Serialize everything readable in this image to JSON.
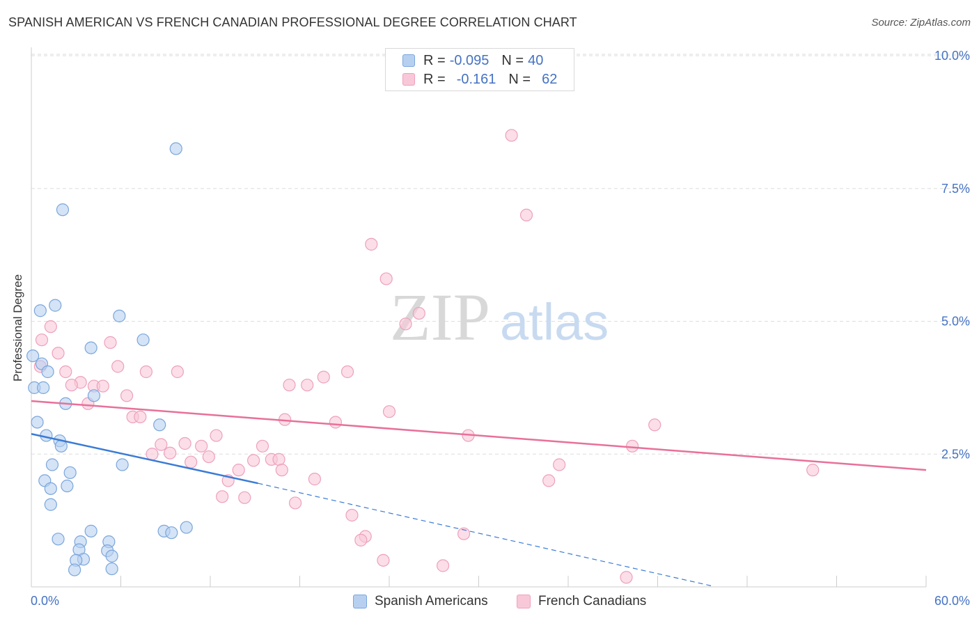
{
  "header": {
    "title": "SPANISH AMERICAN VS FRENCH CANADIAN PROFESSIONAL DEGREE CORRELATION CHART",
    "source": "Source: ZipAtlas.com"
  },
  "watermark": {
    "part1": "ZIP",
    "part2": "atlas"
  },
  "legend": {
    "series1": {
      "r_label": "R =",
      "r_value": "-0.095",
      "n_label": "N =",
      "n_value": "40"
    },
    "series2": {
      "r_label": "R =",
      "r_value": "-0.161",
      "n_label": "N =",
      "n_value": "62"
    }
  },
  "colors": {
    "blue_fill": "#b8d0f0",
    "blue_stroke": "#7aa6dc",
    "blue_line": "#3a7bd5",
    "pink_fill": "#f8c8d8",
    "pink_stroke": "#eea0bc",
    "pink_line": "#e8709a",
    "tick_text": "#4472c4",
    "grid": "#dddddd"
  },
  "chart_data": {
    "type": "scatter",
    "title": "SPANISH AMERICAN VS FRENCH CANADIAN PROFESSIONAL DEGREE CORRELATION CHART",
    "xlabel": "",
    "ylabel": "Professional Degree",
    "xlim": [
      0,
      60
    ],
    "ylim": [
      0,
      10
    ],
    "x_tick_labels": [
      "0.0%",
      "60.0%"
    ],
    "y_ticks": [
      {
        "value": 2.5,
        "label": "2.5%"
      },
      {
        "value": 5.0,
        "label": "5.0%"
      },
      {
        "value": 7.5,
        "label": "7.5%"
      },
      {
        "value": 10.0,
        "label": "10.0%"
      }
    ],
    "series": [
      {
        "name": "Spanish Americans",
        "color": "blue",
        "r": -0.095,
        "n": 40,
        "trend": {
          "x0": 0,
          "y0": 2.88,
          "x1": 15.2,
          "y1": 1.95,
          "dash_to_x": 45.6,
          "dash_to_y": 0.02
        },
        "points": [
          [
            9.7,
            8.25
          ],
          [
            2.1,
            7.1
          ],
          [
            0.6,
            5.2
          ],
          [
            1.6,
            5.3
          ],
          [
            5.9,
            5.1
          ],
          [
            7.5,
            4.65
          ],
          [
            4.0,
            4.5
          ],
          [
            0.1,
            4.35
          ],
          [
            0.7,
            4.2
          ],
          [
            1.1,
            4.05
          ],
          [
            0.2,
            3.75
          ],
          [
            0.8,
            3.75
          ],
          [
            4.2,
            3.6
          ],
          [
            2.3,
            3.45
          ],
          [
            0.4,
            3.1
          ],
          [
            8.6,
            3.05
          ],
          [
            1.0,
            2.85
          ],
          [
            1.9,
            2.75
          ],
          [
            2.0,
            2.65
          ],
          [
            6.1,
            2.3
          ],
          [
            1.4,
            2.3
          ],
          [
            2.6,
            2.15
          ],
          [
            0.9,
            2.0
          ],
          [
            2.4,
            1.9
          ],
          [
            1.3,
            1.85
          ],
          [
            1.3,
            1.55
          ],
          [
            4.0,
            1.05
          ],
          [
            10.4,
            1.12
          ],
          [
            8.9,
            1.05
          ],
          [
            9.4,
            1.02
          ],
          [
            1.8,
            0.9
          ],
          [
            3.3,
            0.85
          ],
          [
            5.2,
            0.85
          ],
          [
            3.2,
            0.7
          ],
          [
            5.1,
            0.68
          ],
          [
            3.5,
            0.52
          ],
          [
            3.0,
            0.5
          ],
          [
            5.4,
            0.58
          ],
          [
            2.9,
            0.32
          ],
          [
            5.4,
            0.34
          ]
        ]
      },
      {
        "name": "French Canadians",
        "color": "pink",
        "r": -0.161,
        "n": 62,
        "trend": {
          "x0": 0,
          "y0": 3.5,
          "x1": 60,
          "y1": 2.2
        },
        "points": [
          [
            32.2,
            8.5
          ],
          [
            33.2,
            7.0
          ],
          [
            22.8,
            6.45
          ],
          [
            23.8,
            5.8
          ],
          [
            26.0,
            5.15
          ],
          [
            25.1,
            4.95
          ],
          [
            1.3,
            4.9
          ],
          [
            0.7,
            4.65
          ],
          [
            5.3,
            4.6
          ],
          [
            1.8,
            4.4
          ],
          [
            0.6,
            4.15
          ],
          [
            5.8,
            4.15
          ],
          [
            2.3,
            4.05
          ],
          [
            7.7,
            4.05
          ],
          [
            9.8,
            4.05
          ],
          [
            21.2,
            4.05
          ],
          [
            19.6,
            3.95
          ],
          [
            18.5,
            3.8
          ],
          [
            17.3,
            3.8
          ],
          [
            3.3,
            3.85
          ],
          [
            2.7,
            3.8
          ],
          [
            4.2,
            3.78
          ],
          [
            4.8,
            3.78
          ],
          [
            6.4,
            3.6
          ],
          [
            3.8,
            3.45
          ],
          [
            24.0,
            3.3
          ],
          [
            6.8,
            3.2
          ],
          [
            7.3,
            3.2
          ],
          [
            17.0,
            3.15
          ],
          [
            20.4,
            3.1
          ],
          [
            41.8,
            3.05
          ],
          [
            12.4,
            2.85
          ],
          [
            29.3,
            2.85
          ],
          [
            10.3,
            2.7
          ],
          [
            8.7,
            2.68
          ],
          [
            11.4,
            2.65
          ],
          [
            15.5,
            2.65
          ],
          [
            40.3,
            2.65
          ],
          [
            8.1,
            2.5
          ],
          [
            9.3,
            2.52
          ],
          [
            11.9,
            2.45
          ],
          [
            14.9,
            2.38
          ],
          [
            16.1,
            2.4
          ],
          [
            16.6,
            2.4
          ],
          [
            10.7,
            2.35
          ],
          [
            35.4,
            2.3
          ],
          [
            13.9,
            2.2
          ],
          [
            16.8,
            2.2
          ],
          [
            52.4,
            2.2
          ],
          [
            13.2,
            2.0
          ],
          [
            19.0,
            2.03
          ],
          [
            34.7,
            2.0
          ],
          [
            12.8,
            1.7
          ],
          [
            14.3,
            1.68
          ],
          [
            17.7,
            1.58
          ],
          [
            21.5,
            1.35
          ],
          [
            29.0,
            1.0
          ],
          [
            22.4,
            0.95
          ],
          [
            22.1,
            0.88
          ],
          [
            23.6,
            0.5
          ],
          [
            27.6,
            0.4
          ],
          [
            39.9,
            0.18
          ]
        ]
      }
    ]
  }
}
